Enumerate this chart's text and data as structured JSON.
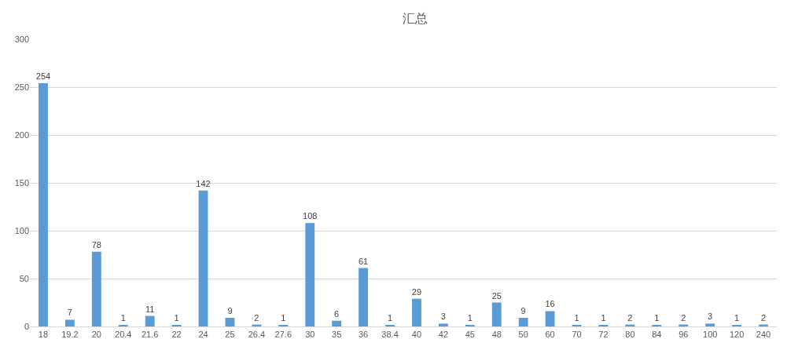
{
  "chart_data": {
    "type": "bar",
    "title": "汇总",
    "categories": [
      "18",
      "19.2",
      "20",
      "20.4",
      "21.6",
      "22",
      "24",
      "25",
      "26.4",
      "27.6",
      "30",
      "35",
      "36",
      "38.4",
      "40",
      "42",
      "45",
      "48",
      "50",
      "60",
      "70",
      "72",
      "80",
      "84",
      "96",
      "100",
      "120",
      "240"
    ],
    "values": [
      254,
      7,
      78,
      1,
      11,
      1,
      142,
      9,
      2,
      1,
      108,
      6,
      61,
      1,
      29,
      3,
      1,
      25,
      9,
      16,
      1,
      1,
      2,
      1,
      2,
      3,
      1,
      2
    ],
    "color": "#5b9bd5",
    "ylim": [
      0,
      300
    ],
    "yticks": [
      0,
      50,
      100,
      150,
      200,
      250,
      300
    ],
    "grid": "y",
    "data_labels": true
  }
}
